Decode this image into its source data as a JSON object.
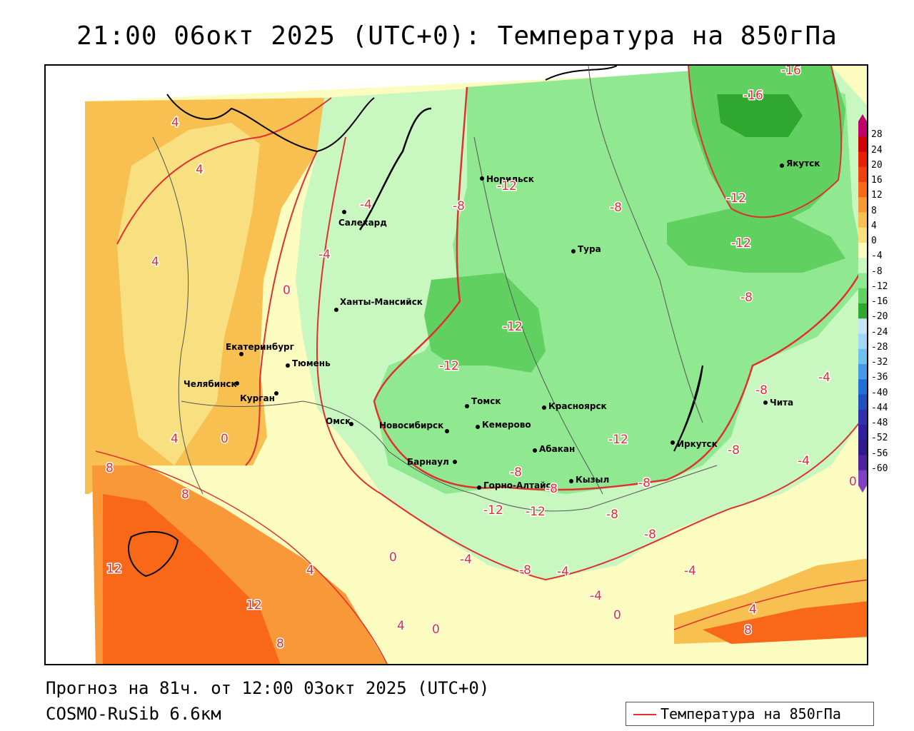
{
  "title": "21:00 06окт 2025 (UTC+0): Температура на 850гПа",
  "forecast_line": "Прогноз на 81ч. от 12:00 03окт 2025 (UTC+0)",
  "model_line": "COSMO-RuSib 6.6км",
  "legend_label": "Температура на 850гПа",
  "colorbar": {
    "levels": [
      "28",
      "24",
      "20",
      "16",
      "12",
      "8",
      "4",
      "0",
      "-4",
      "-8",
      "-12",
      "-16",
      "-20",
      "-24",
      "-28",
      "-32",
      "-36",
      "-40",
      "-44",
      "-48",
      "-52",
      "-56",
      "-60"
    ],
    "colors": [
      "#c0006c",
      "#d00000",
      "#e82000",
      "#f04010",
      "#f86818",
      "#f89838",
      "#f8c050",
      "#f8e080",
      "#fcfcc0",
      "#c8f8c0",
      "#90e890",
      "#60d060",
      "#30a830",
      "#c8e8f8",
      "#a0d8f8",
      "#70c0f0",
      "#4898e8",
      "#2070d8",
      "#2050c0",
      "#3030b0",
      "#3020a0",
      "#301890",
      "#5020a0",
      "#8040c0"
    ]
  },
  "cities": [
    {
      "name": "Норильск"
    },
    {
      "name": "Якутск"
    },
    {
      "name": "Салехард"
    },
    {
      "name": "Тура"
    },
    {
      "name": "Ханты-Мансийск"
    },
    {
      "name": "Екатеринбург"
    },
    {
      "name": "Тюмень"
    },
    {
      "name": "Челябинск"
    },
    {
      "name": "Курган"
    },
    {
      "name": "Омск"
    },
    {
      "name": "Томск"
    },
    {
      "name": "Красноярск"
    },
    {
      "name": "Новосибирск"
    },
    {
      "name": "Кемерово"
    },
    {
      "name": "Абакан"
    },
    {
      "name": "Иркутск"
    },
    {
      "name": "Чита"
    },
    {
      "name": "Барнаул"
    },
    {
      "name": "Кызыл"
    },
    {
      "name": "Горно-Алтайск"
    }
  ],
  "isotherm_labels": [
    "-16",
    "-16",
    "4",
    "4",
    "-4",
    "-12",
    "-8",
    "-8",
    "-12",
    "-12",
    "4",
    "-4",
    "0",
    "-12",
    "-12",
    "-8",
    "-4",
    "-8",
    "4",
    "0",
    "-12",
    "-8",
    "-8",
    "8",
    "8",
    "-8",
    "-8",
    "-12",
    "-12",
    "-8",
    "-8",
    "0",
    "-4",
    "-8",
    "-4",
    "-4",
    "0",
    "-4",
    "12",
    "4",
    "12",
    "-4",
    "0",
    "4",
    "0",
    "4",
    "8",
    "8"
  ]
}
